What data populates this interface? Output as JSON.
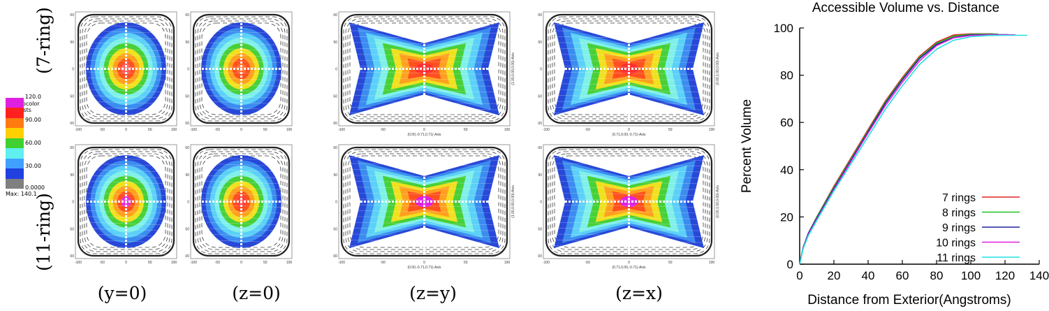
{
  "figure": {
    "row_labels": [
      "(7-ring)",
      "(11-ring)"
    ],
    "column_labels": [
      "(y=0)",
      "(z=0)",
      "(z=y)",
      "(z=x)"
    ],
    "colorbar": {
      "title": "Pseudocolor",
      "variable": "Var: dists",
      "ticks": [
        "120.0",
        "90.00",
        "60.00",
        "30.00",
        "0.0000"
      ],
      "max_label": "Max: 140.1",
      "colors": [
        "#e020e0",
        "#ff2020",
        "#ff7a10",
        "#ffd000",
        "#40d030",
        "#60f0f0",
        "#40a0ff",
        "#2040e0",
        "#808080"
      ]
    },
    "panels": [
      {
        "row": 0,
        "col": 0,
        "kind": "sq",
        "ticks": [
          "100",
          "50",
          "0",
          "-50",
          "-100"
        ],
        "inner": "#ff6060"
      },
      {
        "row": 0,
        "col": 1,
        "kind": "sq",
        "ticks": [
          "100",
          "50",
          "0",
          "-50",
          "-100"
        ],
        "inner": "#ff7030"
      },
      {
        "row": 0,
        "col": 2,
        "kind": "wide",
        "ticks": [
          "100",
          "50",
          "0",
          "-50",
          "-100"
        ],
        "xlabel": "(0.00,-0.71,0.71)-Axis",
        "ylabel": "(1.00,0.00,0.00)-Axis",
        "inner": "#ff3030"
      },
      {
        "row": 0,
        "col": 3,
        "kind": "wide",
        "ticks": [
          "100",
          "50",
          "0",
          "-50",
          "-100"
        ],
        "xlabel": "(0.71,0.00,-0.71)-Axis",
        "ylabel": "(0.00,1.00,0.00)-Axis",
        "inner": "#ff3030"
      },
      {
        "row": 1,
        "col": 0,
        "kind": "sq",
        "ticks": [
          "100",
          "50",
          "0",
          "-50",
          "-100"
        ],
        "inner": "#e030e0"
      },
      {
        "row": 1,
        "col": 1,
        "kind": "sq",
        "ticks": [
          "100",
          "50",
          "0",
          "-50",
          "-100"
        ],
        "inner": "#ff4040"
      },
      {
        "row": 1,
        "col": 2,
        "kind": "wide",
        "ticks": [
          "100",
          "50",
          "0",
          "-50",
          "-100"
        ],
        "xlabel": "(0.00,-0.71,0.71)-Axis",
        "ylabel": "(1.00,0.00,0.00)-Axis",
        "inner": "#e020e0"
      },
      {
        "row": 1,
        "col": 3,
        "kind": "wide",
        "ticks": [
          "100",
          "50",
          "0",
          "-50",
          "-100"
        ],
        "xlabel": "(0.71,0.00,-0.71)-Axis",
        "ylabel": "(0.00,1.00,0.00)-Axis",
        "inner": "#e020e0"
      }
    ]
  },
  "chart_data": {
    "type": "line",
    "title": "Accessible Volume vs. Distance",
    "xlabel": "Distance from Exterior(Angstroms)",
    "ylabel": "Percent Volume",
    "xlim": [
      0,
      140
    ],
    "ylim": [
      0,
      100
    ],
    "xticks": [
      0,
      20,
      40,
      60,
      80,
      100,
      120,
      140
    ],
    "yticks": [
      0,
      20,
      40,
      60,
      80,
      100
    ],
    "legend_position": "bottom-right",
    "grid": false,
    "series": [
      {
        "name": "7 rings",
        "color": "#e02020",
        "x": [
          0,
          2,
          5,
          10,
          20,
          30,
          40,
          50,
          60,
          70,
          80,
          90,
          100,
          105,
          110,
          113
        ],
        "y": [
          0,
          7,
          13,
          20,
          33,
          45,
          57,
          69,
          79,
          88,
          94,
          97,
          97.5,
          97.5,
          97.5,
          97.5
        ]
      },
      {
        "name": "8 rings",
        "color": "#20c020",
        "x": [
          0,
          2,
          5,
          10,
          20,
          30,
          40,
          50,
          60,
          70,
          80,
          90,
          100,
          105,
          110,
          116
        ],
        "y": [
          0,
          7,
          13,
          20,
          32.5,
          44.5,
          56.5,
          68.5,
          78.5,
          87.5,
          93.5,
          96.5,
          97.3,
          97.4,
          97.4,
          97.4
        ]
      },
      {
        "name": "9 rings",
        "color": "#2020a0",
        "x": [
          0,
          2,
          5,
          10,
          20,
          30,
          40,
          50,
          60,
          70,
          80,
          90,
          100,
          110,
          120,
          122
        ],
        "y": [
          0,
          7,
          13,
          19.5,
          32,
          44,
          56,
          68,
          78,
          87,
          93,
          96,
          97,
          97.2,
          97.2,
          97.2
        ]
      },
      {
        "name": "10 rings",
        "color": "#e020e0",
        "x": [
          0,
          2,
          5,
          10,
          20,
          30,
          40,
          50,
          60,
          70,
          80,
          90,
          100,
          110,
          120,
          126
        ],
        "y": [
          0,
          6.8,
          12.5,
          19,
          31.5,
          43.5,
          55.5,
          67,
          77,
          86,
          92.5,
          95.8,
          96.8,
          97.1,
          97.1,
          97.1
        ]
      },
      {
        "name": "11 rings",
        "color": "#20e0e0",
        "x": [
          0,
          2,
          5,
          10,
          20,
          30,
          40,
          50,
          60,
          70,
          80,
          90,
          100,
          110,
          120,
          133
        ],
        "y": [
          0,
          6.5,
          12,
          18.5,
          31,
          42.5,
          54,
          65.5,
          75.5,
          84.5,
          91,
          94.8,
          96.3,
          96.8,
          96.9,
          96.9
        ]
      }
    ]
  }
}
